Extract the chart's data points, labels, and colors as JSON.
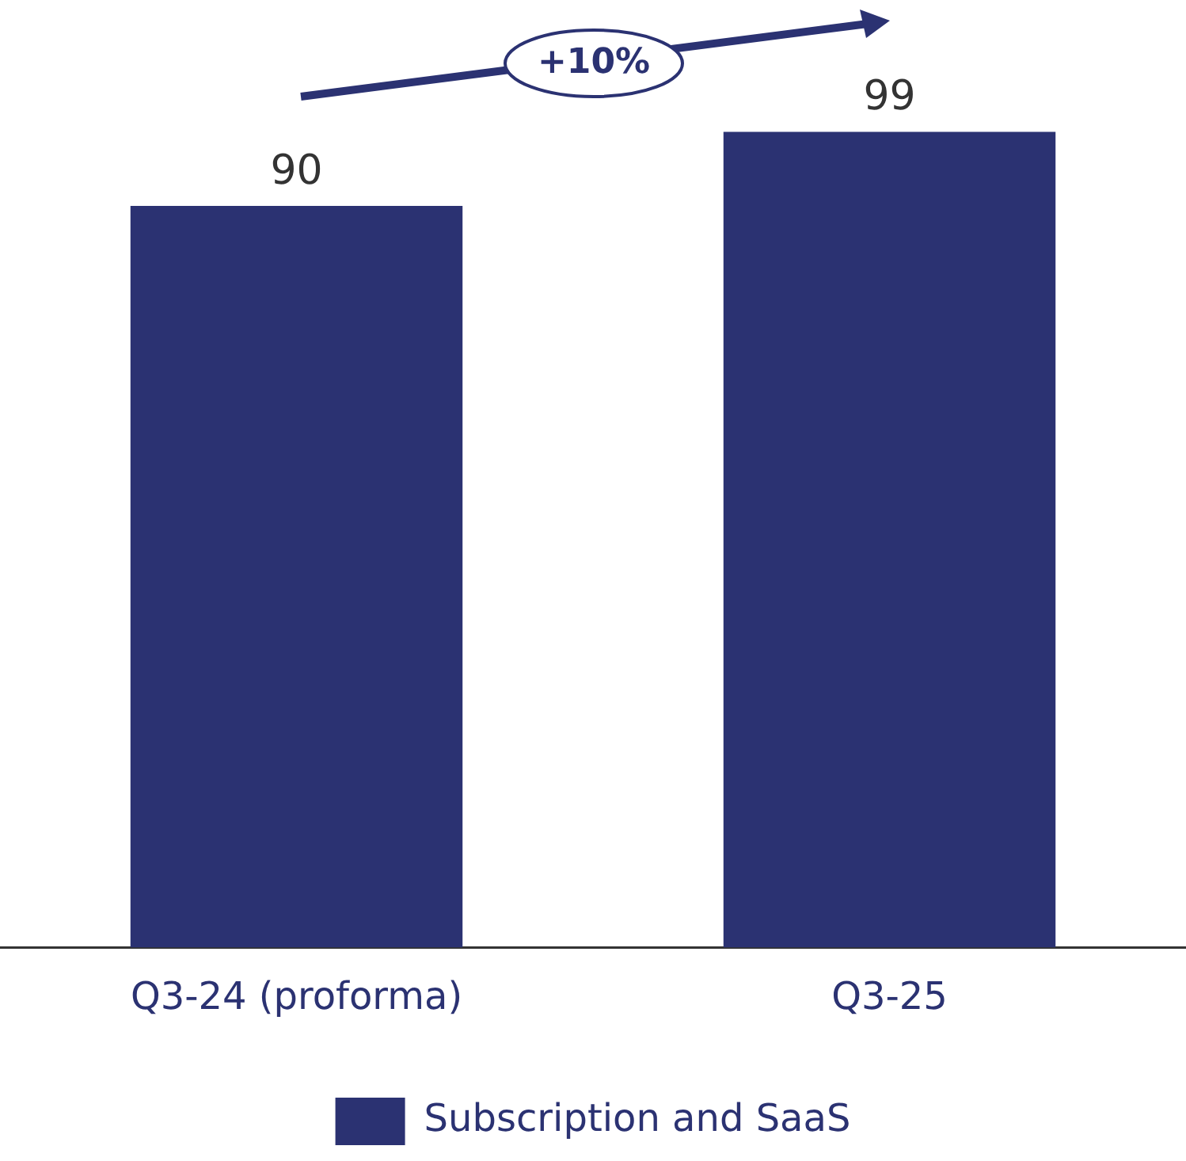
{
  "chart_data": {
    "type": "bar",
    "categories": [
      "Q3-24 (proforma)",
      "Q3-25"
    ],
    "series": [
      {
        "name": "Subscription and SaaS",
        "color": "#2b3272",
        "values": [
          90,
          99
        ]
      }
    ],
    "data_labels": true,
    "legend": "bottom",
    "grid": false,
    "annotations": [
      "+10%"
    ]
  }
}
